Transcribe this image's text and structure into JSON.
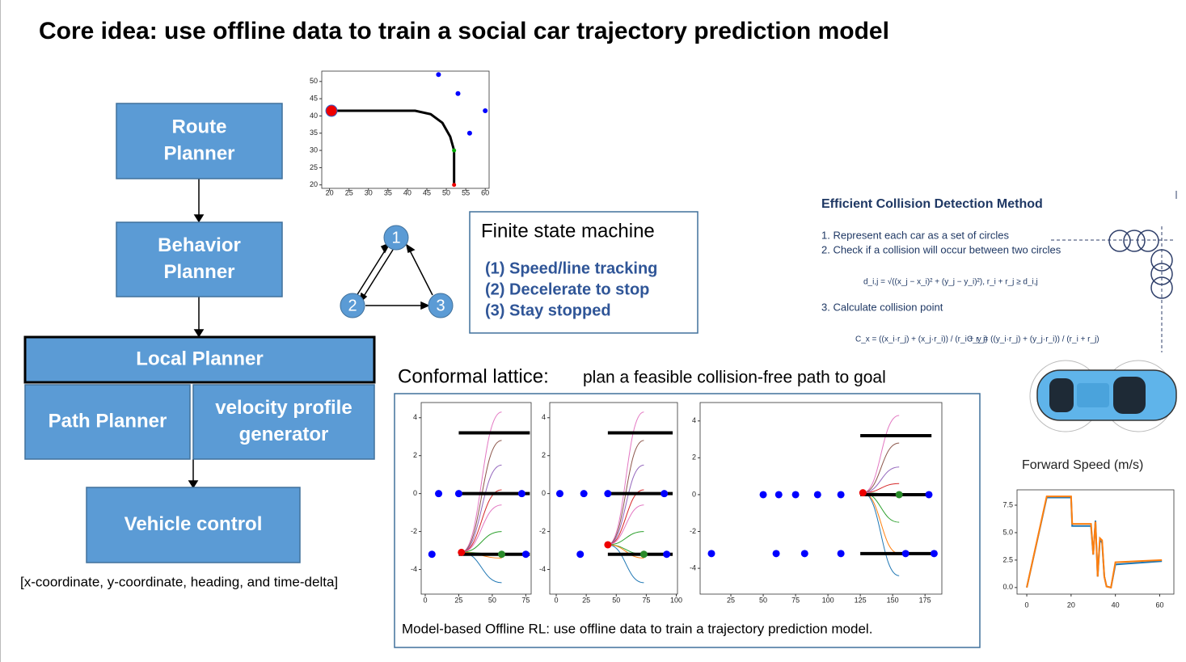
{
  "title": "Core idea: use offline data to train a social car trajectory prediction model",
  "flowchart": {
    "nodes": [
      {
        "lines": [
          "Route",
          "Planner"
        ]
      },
      {
        "lines": [
          "Behavior",
          "Planner"
        ]
      },
      {
        "lines": [
          "Local Planner"
        ]
      },
      {
        "lines": [
          "Path Planner"
        ]
      },
      {
        "lines": [
          "velocity profile",
          "generator"
        ]
      },
      {
        "lines": [
          "Vehicle control"
        ]
      }
    ],
    "caption": "[x-coordinate, y-coordinate, heading, and time-delta]"
  },
  "trajectory_plot": {
    "xlim": [
      18,
      61
    ],
    "ylim": [
      19,
      53
    ],
    "xticks": [
      20,
      25,
      30,
      35,
      40,
      45,
      50,
      55,
      60
    ],
    "yticks": [
      20,
      25,
      30,
      35,
      40,
      45,
      50
    ],
    "agents": {
      "x": [
        48,
        53,
        60,
        56
      ],
      "y": [
        52,
        46.5,
        41.5,
        35
      ]
    },
    "path": {
      "x": [
        20.5,
        42,
        46,
        49,
        51,
        52,
        52
      ],
      "y": [
        41.5,
        41.5,
        40.5,
        38,
        34,
        30,
        20
      ]
    },
    "start": {
      "x": 20.5,
      "y": 41.5
    },
    "waypoint": {
      "x": 52,
      "y": 30
    },
    "goal": {
      "x": 52,
      "y": 20
    }
  },
  "fsm": {
    "nodes": [
      "1",
      "2",
      "3"
    ],
    "title": "Finite state machine",
    "states": [
      "(1) Speed/line tracking",
      "(2) Decelerate to stop",
      "(3) Stay stopped"
    ]
  },
  "collision": {
    "title": "Efficient Collision Detection Method",
    "steps": [
      "1. Represent each car as a set of circles",
      "2. Check if a collision will occur between two circles",
      "3. Calculate collision point"
    ],
    "formulas": [
      "d_i,j = √((x_j − x_i)² + (y_j − y_i)²),     r_i + r_j ≥ d_i,j",
      "C_x = ((x_i·r_j) + (x_j·r_i)) / (r_i + r_j)",
      "C_y = ((y_i·r_j) + (y_j·r_i)) / (r_i + r_j)"
    ]
  },
  "lattice": {
    "heading": "Conformal lattice:",
    "subheading": "plan a feasible collision-free path to goal",
    "caption": "Model-based Offline RL: use  offline data to train a trajectory prediction model.",
    "plots": [
      {
        "xlim": [
          -3,
          79
        ],
        "ylim": [
          -5.3,
          4.8
        ],
        "xticks": [
          0,
          25,
          50,
          75
        ],
        "yticks": [
          -4,
          -2,
          0,
          2,
          4
        ],
        "agents": {
          "x": [
            10,
            25,
            72,
            5,
            75
          ],
          "y": [
            0,
            0,
            0,
            -3.2,
            -3.2
          ]
        },
        "obstacles": {
          "x0": 25,
          "x1": 78,
          "y": [
            3.2,
            0,
            -3.2
          ]
        },
        "start": {
          "x": 27,
          "y": -3.1
        },
        "goal": {
          "x": 57,
          "y": -3.2
        },
        "curves": {
          "end_x": 57,
          "end_y": [
            4.3,
            2.8,
            1.5,
            0.2,
            -0.6,
            -2,
            -3.2,
            -3.4,
            -4.7
          ],
          "colors": [
            "#e377c2",
            "#8c564b",
            "#9467bd",
            "#d62728",
            "#e377c2",
            "#2ca02c",
            "#2ca02c",
            "#ff7f0e",
            "#1f77b4"
          ]
        }
      },
      {
        "xlim": [
          -5.4,
          101
        ],
        "ylim": [
          -5.3,
          4.8
        ],
        "xticks": [
          0,
          25,
          50,
          75,
          100
        ],
        "yticks": [
          -4,
          -2,
          0,
          2,
          4
        ],
        "agents": {
          "x": [
            3,
            23,
            43,
            90,
            20,
            92
          ],
          "y": [
            0,
            0,
            0,
            0,
            -3.2,
            -3.2
          ]
        },
        "obstacles": {
          "x0": 43,
          "x1": 97,
          "y": [
            3.2,
            0,
            -3.2
          ]
        },
        "start": {
          "x": 43,
          "y": -2.7
        },
        "goal": {
          "x": 73,
          "y": -3.2
        },
        "curves": {
          "end_x": 73,
          "end_y": [
            4.3,
            2.8,
            1.5,
            0.2,
            -0.6,
            -2,
            -3.2,
            -3.4,
            -4.7
          ],
          "colors": [
            "#e377c2",
            "#8c564b",
            "#9467bd",
            "#d62728",
            "#e377c2",
            "#2ca02c",
            "#2ca02c",
            "#ff7f0e",
            "#1f77b4"
          ]
        }
      },
      {
        "xlim": [
          1.25,
          188
        ],
        "ylim": [
          -5.4,
          5
        ],
        "xticks": [
          25,
          50,
          75,
          100,
          125,
          150,
          175
        ],
        "yticks": [
          -4,
          -2,
          0,
          2,
          4
        ],
        "agents": {
          "x": [
            50,
            62,
            75,
            92,
            110,
            178,
            10,
            60,
            82,
            110,
            160,
            182
          ],
          "y": [
            0,
            0,
            0,
            0,
            0,
            0,
            -3.2,
            -3.2,
            -3.2,
            -3.2,
            -3.2,
            -3.2
          ]
        },
        "obstacles": {
          "x0": 125,
          "x1": 180,
          "y": [
            3.2,
            0,
            -3.2
          ]
        },
        "start": {
          "x": 127,
          "y": 0.1
        },
        "goal": {
          "x": 155,
          "y": 0
        },
        "curves": {
          "end_x": 155,
          "end_y": [
            4.3,
            2.8,
            1.5,
            0.6,
            0,
            -0.1,
            -1.5,
            -3.2,
            -4.4
          ],
          "colors": [
            "#e377c2",
            "#8c564b",
            "#9467bd",
            "#d62728",
            "#2ca02c",
            "#e377c2",
            "#2ca02c",
            "#ff7f0e",
            "#1f77b4"
          ]
        }
      }
    ]
  },
  "speed_plot": {
    "title": "Forward Speed (m/s)",
    "xlim": [
      -4.4,
      66.4
    ],
    "ylim": [
      -0.6,
      8.9
    ],
    "xticks": [
      0,
      20,
      40,
      60
    ],
    "yticks": [
      {
        "value": 0,
        "label": "0.0"
      },
      {
        "value": 2.5,
        "label": "2.5"
      },
      {
        "value": 5,
        "label": "5.0"
      },
      {
        "value": 7.5,
        "label": "7.5"
      }
    ],
    "series": [
      {
        "color": "#1f77b4",
        "x": [
          0,
          9,
          20,
          20.5,
          29,
          30,
          31,
          32,
          33,
          34,
          35,
          36,
          38,
          40,
          61
        ],
        "y": [
          0,
          8.2,
          8.2,
          5.6,
          5.6,
          3,
          6.1,
          1,
          4.3,
          4.1,
          1,
          0.1,
          0,
          2.1,
          2.4
        ]
      },
      {
        "color": "#ff7f0e",
        "x": [
          0,
          9,
          20,
          20.5,
          29,
          30,
          31,
          32,
          33,
          34,
          35,
          36,
          38,
          40,
          61
        ],
        "y": [
          0,
          8.3,
          8.3,
          5.8,
          5.8,
          3,
          6,
          1,
          4.5,
          4.3,
          1,
          0.1,
          0,
          2.3,
          2.5
        ]
      }
    ]
  }
}
